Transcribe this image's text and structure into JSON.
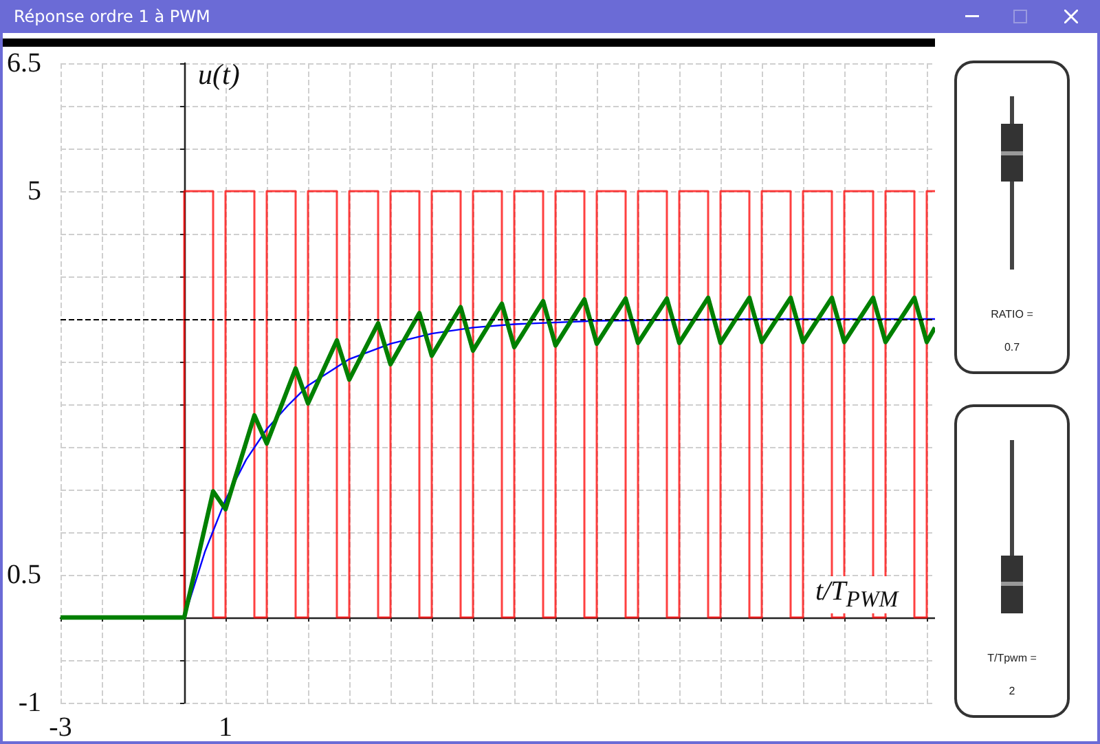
{
  "chart_data": {
    "type": "line",
    "title": "Réponse ordre 1 à PWM",
    "xlabel": "t/T$_{PWM}$",
    "ylabel": "u(t)",
    "xlim": [
      -3,
      18.2
    ],
    "ylim": [
      -1,
      6.5
    ],
    "xticks": [
      -3,
      {
        "value": -2,
        "label": null
      },
      {
        "value": -1,
        "label": null
      },
      {
        "value": 0,
        "label": null
      },
      1,
      {
        "value": 2,
        "label": null
      },
      {
        "value": 3,
        "label": null
      },
      {
        "value": 4,
        "label": null
      },
      {
        "value": 5,
        "label": null
      },
      {
        "value": 6,
        "label": null
      },
      {
        "value": 7,
        "label": null
      },
      {
        "value": 8,
        "label": null
      },
      {
        "value": 9,
        "label": null
      },
      {
        "value": 10,
        "label": null
      },
      {
        "value": 11,
        "label": null
      },
      {
        "value": 12,
        "label": null
      },
      {
        "value": 13,
        "label": null
      },
      {
        "value": 14,
        "label": null
      },
      {
        "value": 15,
        "label": null
      },
      {
        "value": 16,
        "label": null
      },
      {
        "value": 17,
        "label": null
      },
      {
        "value": 18,
        "label": null
      }
    ],
    "yticks": [
      -1,
      {
        "value": -0.5,
        "label": null
      },
      {
        "value": 0,
        "label": null
      },
      0.5,
      {
        "value": 1,
        "label": null
      },
      {
        "value": 1.5,
        "label": null
      },
      {
        "value": 2,
        "label": null
      },
      {
        "value": 2.5,
        "label": null
      },
      {
        "value": 3,
        "label": null
      },
      {
        "value": 3.5,
        "label": null
      },
      {
        "value": 4,
        "label": null
      },
      {
        "value": 4.5,
        "label": null
      },
      5,
      {
        "value": 5.5,
        "label": null
      },
      {
        "value": 6,
        "label": null
      },
      6.5
    ],
    "grid": true,
    "marker": "none",
    "line_style": "solid",
    "series": [
      {
        "color": "#ff0000",
        "x": [
          -3,
          0,
          0,
          0.7,
          0.7,
          1,
          1,
          1.7,
          1.7,
          2,
          2,
          2.7,
          2.7,
          3,
          3,
          3.7,
          3.7,
          4,
          4,
          4.7,
          4.7,
          5,
          5,
          5.7,
          5.7,
          6,
          6,
          6.7,
          6.7,
          7,
          7,
          7.7,
          7.7,
          8,
          8,
          8.7,
          8.7,
          9,
          9,
          9.7,
          9.7,
          10,
          10,
          10.7,
          10.7,
          11,
          11,
          11.7,
          11.7,
          12,
          12,
          12.7,
          12.7,
          13,
          13,
          13.7,
          13.7,
          14,
          14,
          14.7,
          14.7,
          15,
          15,
          15.7,
          15.7,
          16,
          16,
          16.7,
          16.7,
          17,
          17,
          17.7,
          17.7,
          18,
          18,
          18.2
        ],
        "values": [
          0,
          0,
          5,
          5,
          0,
          0,
          5,
          5,
          0,
          0,
          5,
          5,
          0,
          0,
          5,
          5,
          0,
          0,
          5,
          5,
          0,
          0,
          5,
          5,
          0,
          0,
          5,
          5,
          0,
          0,
          5,
          5,
          0,
          0,
          5,
          5,
          0,
          0,
          5,
          5,
          0,
          0,
          5,
          5,
          0,
          0,
          5,
          5,
          0,
          0,
          5,
          5,
          0,
          0,
          5,
          5,
          0,
          0,
          5,
          5,
          0,
          0,
          5,
          5,
          0,
          0,
          5,
          5,
          0,
          0,
          5,
          5,
          0,
          0,
          5,
          5
        ]
      },
      {
        "color": "#0000ff",
        "x": [
          0,
          0.5,
          1,
          1.5,
          2,
          2.5,
          3,
          4,
          5,
          6,
          7,
          8,
          10,
          12,
          14,
          18.2
        ],
        "values": [
          0,
          0.77,
          1.38,
          1.85,
          2.21,
          2.48,
          2.72,
          3.03,
          3.21,
          3.33,
          3.4,
          3.44,
          3.48,
          3.49,
          3.5,
          3.5
        ]
      },
      {
        "color": "#008000",
        "x": [
          -3,
          0,
          0.7,
          1,
          1.7,
          2,
          2.7,
          3,
          3.7,
          4,
          4.7,
          5,
          5.7,
          6,
          6.7,
          7,
          7.7,
          8,
          8.7,
          9,
          9.7,
          10,
          10.7,
          11,
          11.7,
          12,
          12.7,
          13,
          13.7,
          14,
          14.7,
          15,
          15.7,
          16,
          16.7,
          17,
          17.7,
          18,
          18.2
        ],
        "values": [
          0,
          0,
          1.48,
          1.27,
          2.37,
          2.04,
          2.92,
          2.51,
          3.25,
          2.79,
          3.45,
          2.97,
          3.57,
          3.07,
          3.64,
          3.13,
          3.68,
          3.17,
          3.71,
          3.19,
          3.73,
          3.21,
          3.74,
          3.22,
          3.74,
          3.22,
          3.75,
          3.22,
          3.75,
          3.23,
          3.75,
          3.23,
          3.75,
          3.23,
          3.75,
          3.23,
          3.75,
          3.23,
          3.4
        ]
      }
    ],
    "ref_lines": [
      {
        "axis": "y",
        "value": 3.5,
        "color": "#000000",
        "line_style": "dashed"
      }
    ],
    "annotations": [
      "RATIO =",
      "0.7",
      "T/Tpwm =",
      "2"
    ]
  }
}
